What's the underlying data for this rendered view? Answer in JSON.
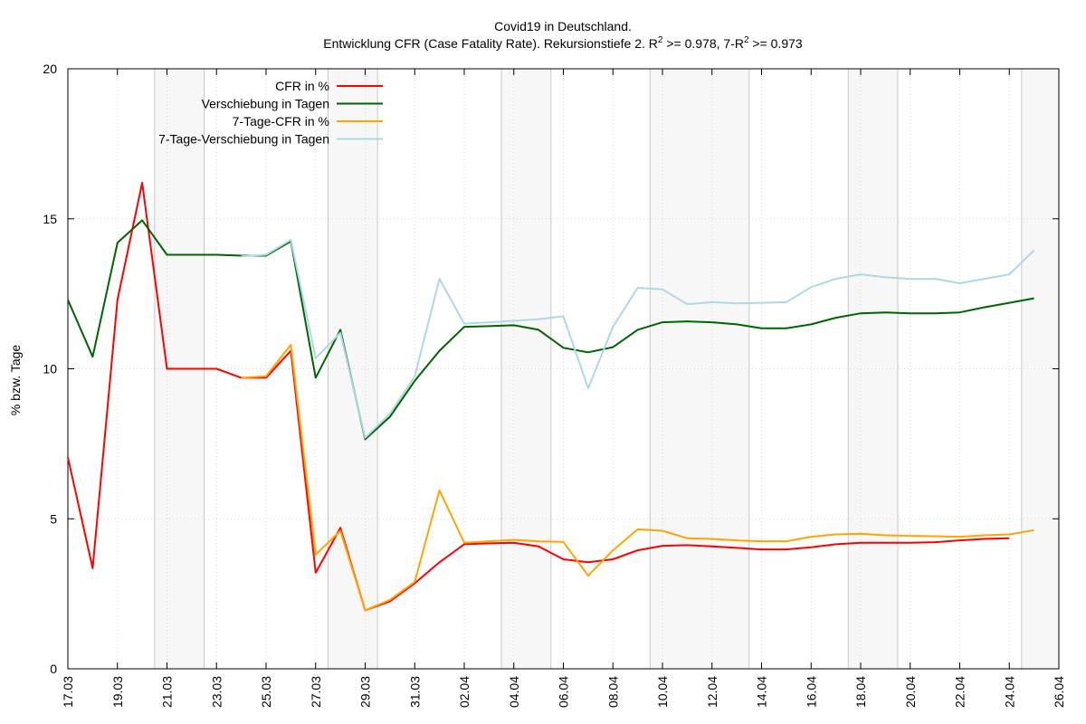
{
  "chart_data": {
    "type": "line",
    "title": "Covid19 in Deutschland.",
    "subtitle": {
      "prefix": "Entwicklung CFR (Case Fatality Rate). Rekursionstiefe 2. R",
      "sup1": "2",
      "middle": " >= 0.978, 7-R",
      "sup2": "2",
      "suffix": " >= 0.973"
    },
    "ylabel": "% bzw. Tage",
    "xlabel": "",
    "ylim": [
      0,
      20
    ],
    "y_ticks": [
      "0",
      "5",
      "10",
      "15",
      "20"
    ],
    "x_ticks": [
      "17.03",
      "19.03",
      "21.03",
      "23.03",
      "25.03",
      "27.03",
      "29.03",
      "31.03",
      "02.04",
      "04.04",
      "06.04",
      "08.04",
      "10.04",
      "12.04",
      "14.04",
      "16.04",
      "18.04",
      "20.04",
      "22.04",
      "24.04",
      "26.04"
    ],
    "x_range_days": [
      0,
      40
    ],
    "grid": true,
    "legend_position": "top-left",
    "weekend_bands": [
      [
        3.5,
        5.5
      ],
      [
        10.5,
        12.5
      ],
      [
        17.5,
        19.5
      ],
      [
        23.5,
        27.5
      ],
      [
        31.5,
        33.5
      ],
      [
        38.5,
        40
      ]
    ],
    "series": [
      {
        "name": "CFR in %",
        "color": "#ff0000",
        "x": [
          0,
          1,
          2,
          3,
          4,
          5,
          6,
          7,
          8,
          9,
          10,
          11,
          12,
          13,
          14,
          15,
          16,
          17,
          18,
          19,
          20,
          21,
          22,
          23,
          24,
          25,
          26,
          27,
          28,
          29,
          30,
          31,
          32,
          33,
          34,
          35,
          36,
          37,
          38,
          39
        ],
        "y": [
          7.05,
          3.35,
          12.3,
          16.2,
          10.0,
          10.0,
          10.0,
          9.7,
          9.7,
          10.6,
          3.2,
          4.7,
          1.95,
          2.25,
          2.85,
          3.55,
          4.15,
          4.18,
          4.2,
          4.08,
          3.65,
          3.55,
          3.65,
          3.95,
          4.1,
          4.12,
          4.08,
          4.03,
          3.98,
          3.98,
          4.05,
          4.15,
          4.2,
          4.2,
          4.2,
          4.22,
          4.28,
          4.33,
          4.35,
          null
        ]
      },
      {
        "name": "Verschiebung in Tagen",
        "color": "#006400",
        "x": [
          0,
          1,
          2,
          3,
          4,
          5,
          6,
          7,
          8,
          9,
          10,
          11,
          12,
          13,
          14,
          15,
          16,
          17,
          18,
          19,
          20,
          21,
          22,
          23,
          24,
          25,
          26,
          27,
          28,
          29,
          30,
          31,
          32,
          33,
          34,
          35,
          36,
          37,
          38,
          39
        ],
        "y": [
          12.3,
          10.4,
          14.2,
          14.95,
          13.8,
          13.8,
          13.8,
          13.77,
          13.77,
          14.25,
          9.7,
          11.3,
          7.65,
          8.4,
          9.6,
          10.6,
          11.4,
          11.42,
          11.45,
          11.3,
          10.7,
          10.55,
          10.72,
          11.3,
          11.55,
          11.58,
          11.55,
          11.48,
          11.35,
          11.35,
          11.48,
          11.7,
          11.85,
          11.88,
          11.85,
          11.85,
          11.88,
          12.05,
          12.2,
          12.35
        ]
      },
      {
        "name": "7-Tage-CFR in %",
        "color": "#ffa500",
        "x": [
          7,
          8,
          9,
          10,
          11,
          12,
          13,
          14,
          15,
          16,
          17,
          18,
          19,
          20,
          21,
          22,
          23,
          24,
          25,
          26,
          27,
          28,
          29,
          30,
          31,
          32,
          33,
          34,
          35,
          36,
          37,
          38,
          39
        ],
        "y": [
          9.7,
          9.75,
          10.8,
          3.8,
          4.6,
          1.95,
          2.3,
          2.9,
          5.95,
          4.2,
          4.25,
          4.3,
          4.25,
          4.23,
          3.1,
          3.95,
          4.65,
          4.6,
          4.35,
          4.33,
          4.28,
          4.25,
          4.25,
          4.4,
          4.48,
          4.5,
          4.45,
          4.43,
          4.42,
          4.4,
          4.45,
          4.48,
          4.62
        ]
      },
      {
        "name": "7-Tage-Verschiebung in Tagen",
        "color": "#add8e6",
        "x": [
          7,
          8,
          9,
          10,
          11,
          12,
          13,
          14,
          15,
          16,
          17,
          18,
          19,
          20,
          21,
          22,
          23,
          24,
          25,
          26,
          27,
          28,
          29,
          30,
          31,
          32,
          33,
          34,
          35,
          36,
          37,
          38,
          39
        ],
        "y": [
          13.75,
          13.8,
          14.3,
          10.35,
          11.2,
          7.7,
          8.5,
          9.75,
          13.0,
          11.5,
          11.55,
          11.6,
          11.65,
          11.75,
          9.35,
          11.4,
          12.7,
          12.65,
          12.15,
          12.22,
          12.18,
          12.2,
          12.22,
          12.72,
          13.0,
          13.15,
          13.05,
          13.0,
          13.0,
          12.85,
          13.0,
          13.15,
          13.95
        ]
      }
    ]
  }
}
